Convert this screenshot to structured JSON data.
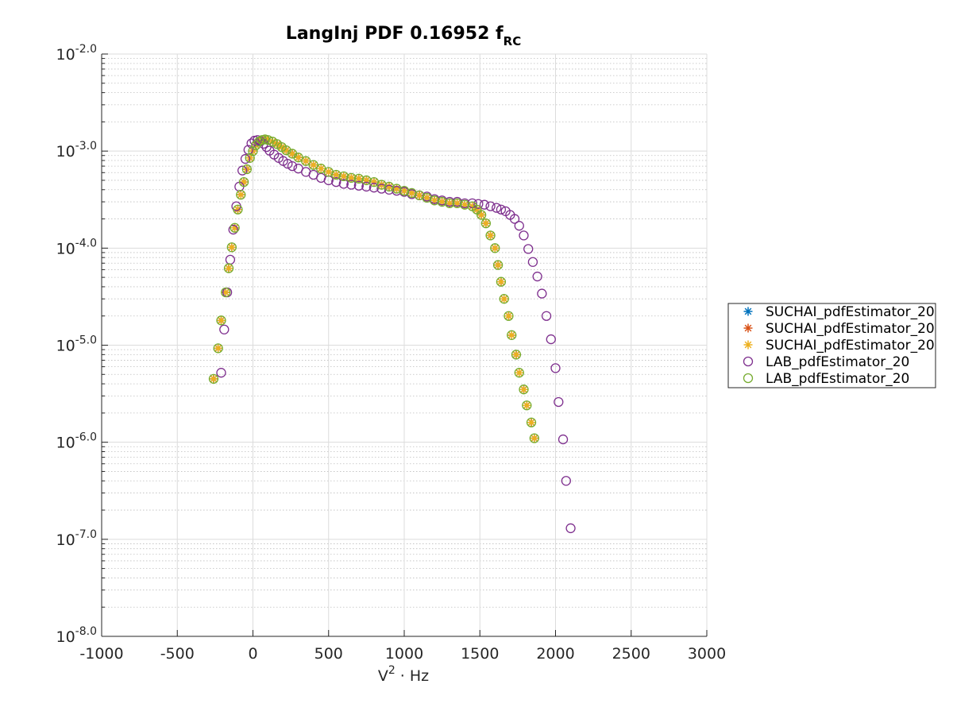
{
  "chart_data": {
    "type": "scatter",
    "title": "LangInj PDF 0.16952 f",
    "title_subscript": "RC",
    "xlabel": "V",
    "xlabel_superscript": "2",
    "xlabel_suffix": " · Hz",
    "ylabel": "",
    "xlim": [
      -1000,
      3000
    ],
    "ylim_exp": [
      -8,
      -2
    ],
    "yscale": "log",
    "grid": true,
    "minor_grid": true,
    "legend_position": "outside-right",
    "x_ticks": [
      -1000,
      -500,
      0,
      500,
      1000,
      1500,
      2000,
      2500,
      3000
    ],
    "x_tick_labels": [
      "-1000",
      "-500",
      "0",
      "500",
      "1000",
      "1500",
      "2000",
      "2500",
      "3000"
    ],
    "y_ticks": [
      {
        "base": "10",
        "exp": "-2.0",
        "value_exp": -2
      },
      {
        "base": "10",
        "exp": "-3.0",
        "value_exp": -3
      },
      {
        "base": "10",
        "exp": "-4.0",
        "value_exp": -4
      },
      {
        "base": "10",
        "exp": "-5.0",
        "value_exp": -5
      },
      {
        "base": "10",
        "exp": "-6.0",
        "value_exp": -6
      },
      {
        "base": "10",
        "exp": "-7.0",
        "value_exp": -7
      },
      {
        "base": "10",
        "exp": "-8.0",
        "value_exp": -8
      }
    ],
    "series": [
      {
        "name": "SUCHAI_pdfEstimator_20",
        "marker": "asterisk",
        "color": "#0072BD",
        "x": [
          -260,
          -230,
          -210,
          -180,
          -160,
          -140,
          -120,
          -100,
          -80,
          -60,
          -40,
          -20,
          0,
          20,
          40,
          60,
          80,
          100,
          130,
          160,
          190,
          220,
          260,
          300,
          350,
          400,
          450,
          500,
          550,
          600,
          650,
          700,
          750,
          800,
          850,
          900,
          950,
          1000,
          1050,
          1100,
          1150,
          1200,
          1250,
          1300,
          1350,
          1400,
          1450,
          1480,
          1510,
          1540,
          1570,
          1600,
          1620,
          1640,
          1660,
          1690,
          1710,
          1740,
          1760,
          1790,
          1810,
          1840,
          1860
        ],
        "y": [
          4.5e-06,
          9.3e-06,
          1.8e-05,
          3.5e-05,
          6.2e-05,
          0.000102,
          0.000162,
          0.00025,
          0.000355,
          0.00048,
          0.00065,
          0.00085,
          0.001,
          0.00115,
          0.00125,
          0.0013,
          0.00132,
          0.0013,
          0.00125,
          0.00118,
          0.0011,
          0.00102,
          0.00094,
          0.00086,
          0.00079,
          0.00072,
          0.00066,
          0.00061,
          0.00057,
          0.00055,
          0.00053,
          0.00052,
          0.0005,
          0.00048,
          0.00045,
          0.00043,
          0.00041,
          0.00039,
          0.00037,
          0.00035,
          0.00033,
          0.00031,
          0.0003,
          0.00029,
          0.00029,
          0.00028,
          0.00027,
          0.00025,
          0.00022,
          0.00018,
          0.000135,
          0.0001,
          6.7e-05,
          4.5e-05,
          3e-05,
          2e-05,
          1.27e-05,
          8e-06,
          5.2e-06,
          3.5e-06,
          2.4e-06,
          1.6e-06,
          1.1e-06
        ]
      },
      {
        "name": "SUCHAI_pdfEstimator_20",
        "marker": "asterisk",
        "color": "#D95319",
        "x": [
          -260,
          -230,
          -210,
          -180,
          -160,
          -140,
          -120,
          -100,
          -80,
          -60,
          -40,
          -20,
          0,
          20,
          40,
          60,
          80,
          100,
          130,
          160,
          190,
          220,
          260,
          300,
          350,
          400,
          450,
          500,
          550,
          600,
          650,
          700,
          750,
          800,
          850,
          900,
          950,
          1000,
          1050,
          1100,
          1150,
          1200,
          1250,
          1300,
          1350,
          1400,
          1450,
          1480,
          1510,
          1540,
          1570,
          1600,
          1620,
          1640,
          1660,
          1690,
          1710,
          1740,
          1760,
          1790,
          1810,
          1840,
          1860
        ],
        "y": [
          4.5e-06,
          9.3e-06,
          1.8e-05,
          3.5e-05,
          6.2e-05,
          0.000102,
          0.000162,
          0.00025,
          0.000355,
          0.00048,
          0.00065,
          0.00085,
          0.001,
          0.00115,
          0.00125,
          0.0013,
          0.00132,
          0.0013,
          0.00125,
          0.00118,
          0.0011,
          0.00102,
          0.00094,
          0.00086,
          0.00079,
          0.00072,
          0.00066,
          0.00061,
          0.00057,
          0.00055,
          0.00053,
          0.00052,
          0.0005,
          0.00048,
          0.00045,
          0.00043,
          0.00041,
          0.00039,
          0.00037,
          0.00035,
          0.00033,
          0.00031,
          0.0003,
          0.00029,
          0.00029,
          0.00028,
          0.00027,
          0.00025,
          0.00022,
          0.00018,
          0.000135,
          0.0001,
          6.7e-05,
          4.5e-05,
          3e-05,
          2e-05,
          1.27e-05,
          8e-06,
          5.2e-06,
          3.5e-06,
          2.4e-06,
          1.6e-06,
          1.1e-06
        ]
      },
      {
        "name": "SUCHAI_pdfEstimator_20",
        "marker": "asterisk",
        "color": "#EDB120",
        "x": [
          -260,
          -230,
          -210,
          -180,
          -160,
          -140,
          -120,
          -100,
          -80,
          -60,
          -40,
          -20,
          0,
          20,
          40,
          60,
          80,
          100,
          130,
          160,
          190,
          220,
          260,
          300,
          350,
          400,
          450,
          500,
          550,
          600,
          650,
          700,
          750,
          800,
          850,
          900,
          950,
          1000,
          1050,
          1100,
          1150,
          1200,
          1250,
          1300,
          1350,
          1400,
          1450,
          1480,
          1510,
          1540,
          1570,
          1600,
          1620,
          1640,
          1660,
          1690,
          1710,
          1740,
          1760,
          1790,
          1810,
          1840,
          1860
        ],
        "y": [
          4.5e-06,
          9.3e-06,
          1.8e-05,
          3.5e-05,
          6.2e-05,
          0.000102,
          0.000162,
          0.00025,
          0.000355,
          0.00048,
          0.00065,
          0.00085,
          0.001,
          0.00115,
          0.00125,
          0.0013,
          0.00132,
          0.0013,
          0.00125,
          0.00118,
          0.0011,
          0.00102,
          0.00094,
          0.00086,
          0.00079,
          0.00072,
          0.00066,
          0.00061,
          0.00057,
          0.00055,
          0.00053,
          0.00052,
          0.0005,
          0.00048,
          0.00045,
          0.00043,
          0.00041,
          0.00039,
          0.00037,
          0.00035,
          0.00033,
          0.00031,
          0.0003,
          0.00029,
          0.00029,
          0.00028,
          0.00027,
          0.00025,
          0.00022,
          0.00018,
          0.000135,
          0.0001,
          6.7e-05,
          4.5e-05,
          3e-05,
          2e-05,
          1.27e-05,
          8e-06,
          5.2e-06,
          3.5e-06,
          2.4e-06,
          1.6e-06,
          1.1e-06
        ]
      },
      {
        "name": "LAB_pdfEstimator_20",
        "marker": "circle",
        "color": "#7E2F8E",
        "x": [
          -210,
          -190,
          -170,
          -150,
          -130,
          -110,
          -90,
          -70,
          -50,
          -30,
          -10,
          10,
          30,
          50,
          70,
          90,
          110,
          140,
          170,
          200,
          230,
          260,
          300,
          350,
          400,
          450,
          500,
          550,
          600,
          650,
          700,
          750,
          800,
          850,
          900,
          950,
          1000,
          1050,
          1100,
          1150,
          1200,
          1250,
          1300,
          1350,
          1400,
          1450,
          1490,
          1530,
          1570,
          1610,
          1640,
          1670,
          1700,
          1730,
          1760,
          1790,
          1820,
          1850,
          1880,
          1910,
          1940,
          1970,
          2000,
          2020,
          2050,
          2070,
          2100
        ],
        "y": [
          5.2e-06,
          1.45e-05,
          3.5e-05,
          7.6e-05,
          0.000155,
          0.00027,
          0.00043,
          0.00063,
          0.00083,
          0.00103,
          0.0012,
          0.00128,
          0.0013,
          0.00126,
          0.00119,
          0.0011,
          0.00101,
          0.00092,
          0.00085,
          0.00079,
          0.00074,
          0.0007,
          0.00066,
          0.00061,
          0.00057,
          0.00053,
          0.0005,
          0.00048,
          0.00046,
          0.00045,
          0.00044,
          0.00043,
          0.00042,
          0.00041,
          0.0004,
          0.00039,
          0.00038,
          0.00036,
          0.00035,
          0.00034,
          0.00032,
          0.00031,
          0.0003,
          0.0003,
          0.00029,
          0.00029,
          0.000285,
          0.00028,
          0.00027,
          0.00026,
          0.00025,
          0.00024,
          0.00022,
          0.0002,
          0.00017,
          0.000135,
          9.8e-05,
          7.2e-05,
          5.1e-05,
          3.4e-05,
          2e-05,
          1.15e-05,
          5.8e-06,
          2.6e-06,
          1.07e-06,
          4e-07,
          1.3e-07
        ]
      },
      {
        "name": "LAB_pdfEstimator_20",
        "marker": "circle",
        "color": "#77AC30",
        "x": [
          -260,
          -230,
          -210,
          -180,
          -160,
          -140,
          -120,
          -100,
          -80,
          -60,
          -40,
          -20,
          0,
          20,
          40,
          60,
          80,
          100,
          130,
          160,
          190,
          220,
          260,
          300,
          350,
          400,
          450,
          500,
          550,
          600,
          650,
          700,
          750,
          800,
          850,
          900,
          950,
          1000,
          1050,
          1100,
          1150,
          1200,
          1250,
          1300,
          1350,
          1400,
          1450,
          1480,
          1510,
          1540,
          1570,
          1600,
          1620,
          1640,
          1660,
          1690,
          1710,
          1740,
          1760,
          1790,
          1810,
          1840,
          1860
        ],
        "y": [
          4.5e-06,
          9.3e-06,
          1.8e-05,
          3.5e-05,
          6.2e-05,
          0.000102,
          0.000162,
          0.00025,
          0.000355,
          0.00048,
          0.00065,
          0.00085,
          0.001,
          0.00115,
          0.00125,
          0.0013,
          0.00132,
          0.0013,
          0.00125,
          0.00118,
          0.0011,
          0.00102,
          0.00094,
          0.00086,
          0.00079,
          0.00072,
          0.00066,
          0.00061,
          0.00057,
          0.00055,
          0.00053,
          0.00052,
          0.0005,
          0.00048,
          0.00045,
          0.00043,
          0.00041,
          0.00039,
          0.00037,
          0.00035,
          0.00033,
          0.00031,
          0.0003,
          0.00029,
          0.00029,
          0.00028,
          0.00027,
          0.00025,
          0.00022,
          0.00018,
          0.000135,
          0.0001,
          6.7e-05,
          4.5e-05,
          3e-05,
          2e-05,
          1.27e-05,
          8e-06,
          5.2e-06,
          3.5e-06,
          2.4e-06,
          1.6e-06,
          1.1e-06
        ]
      }
    ]
  }
}
